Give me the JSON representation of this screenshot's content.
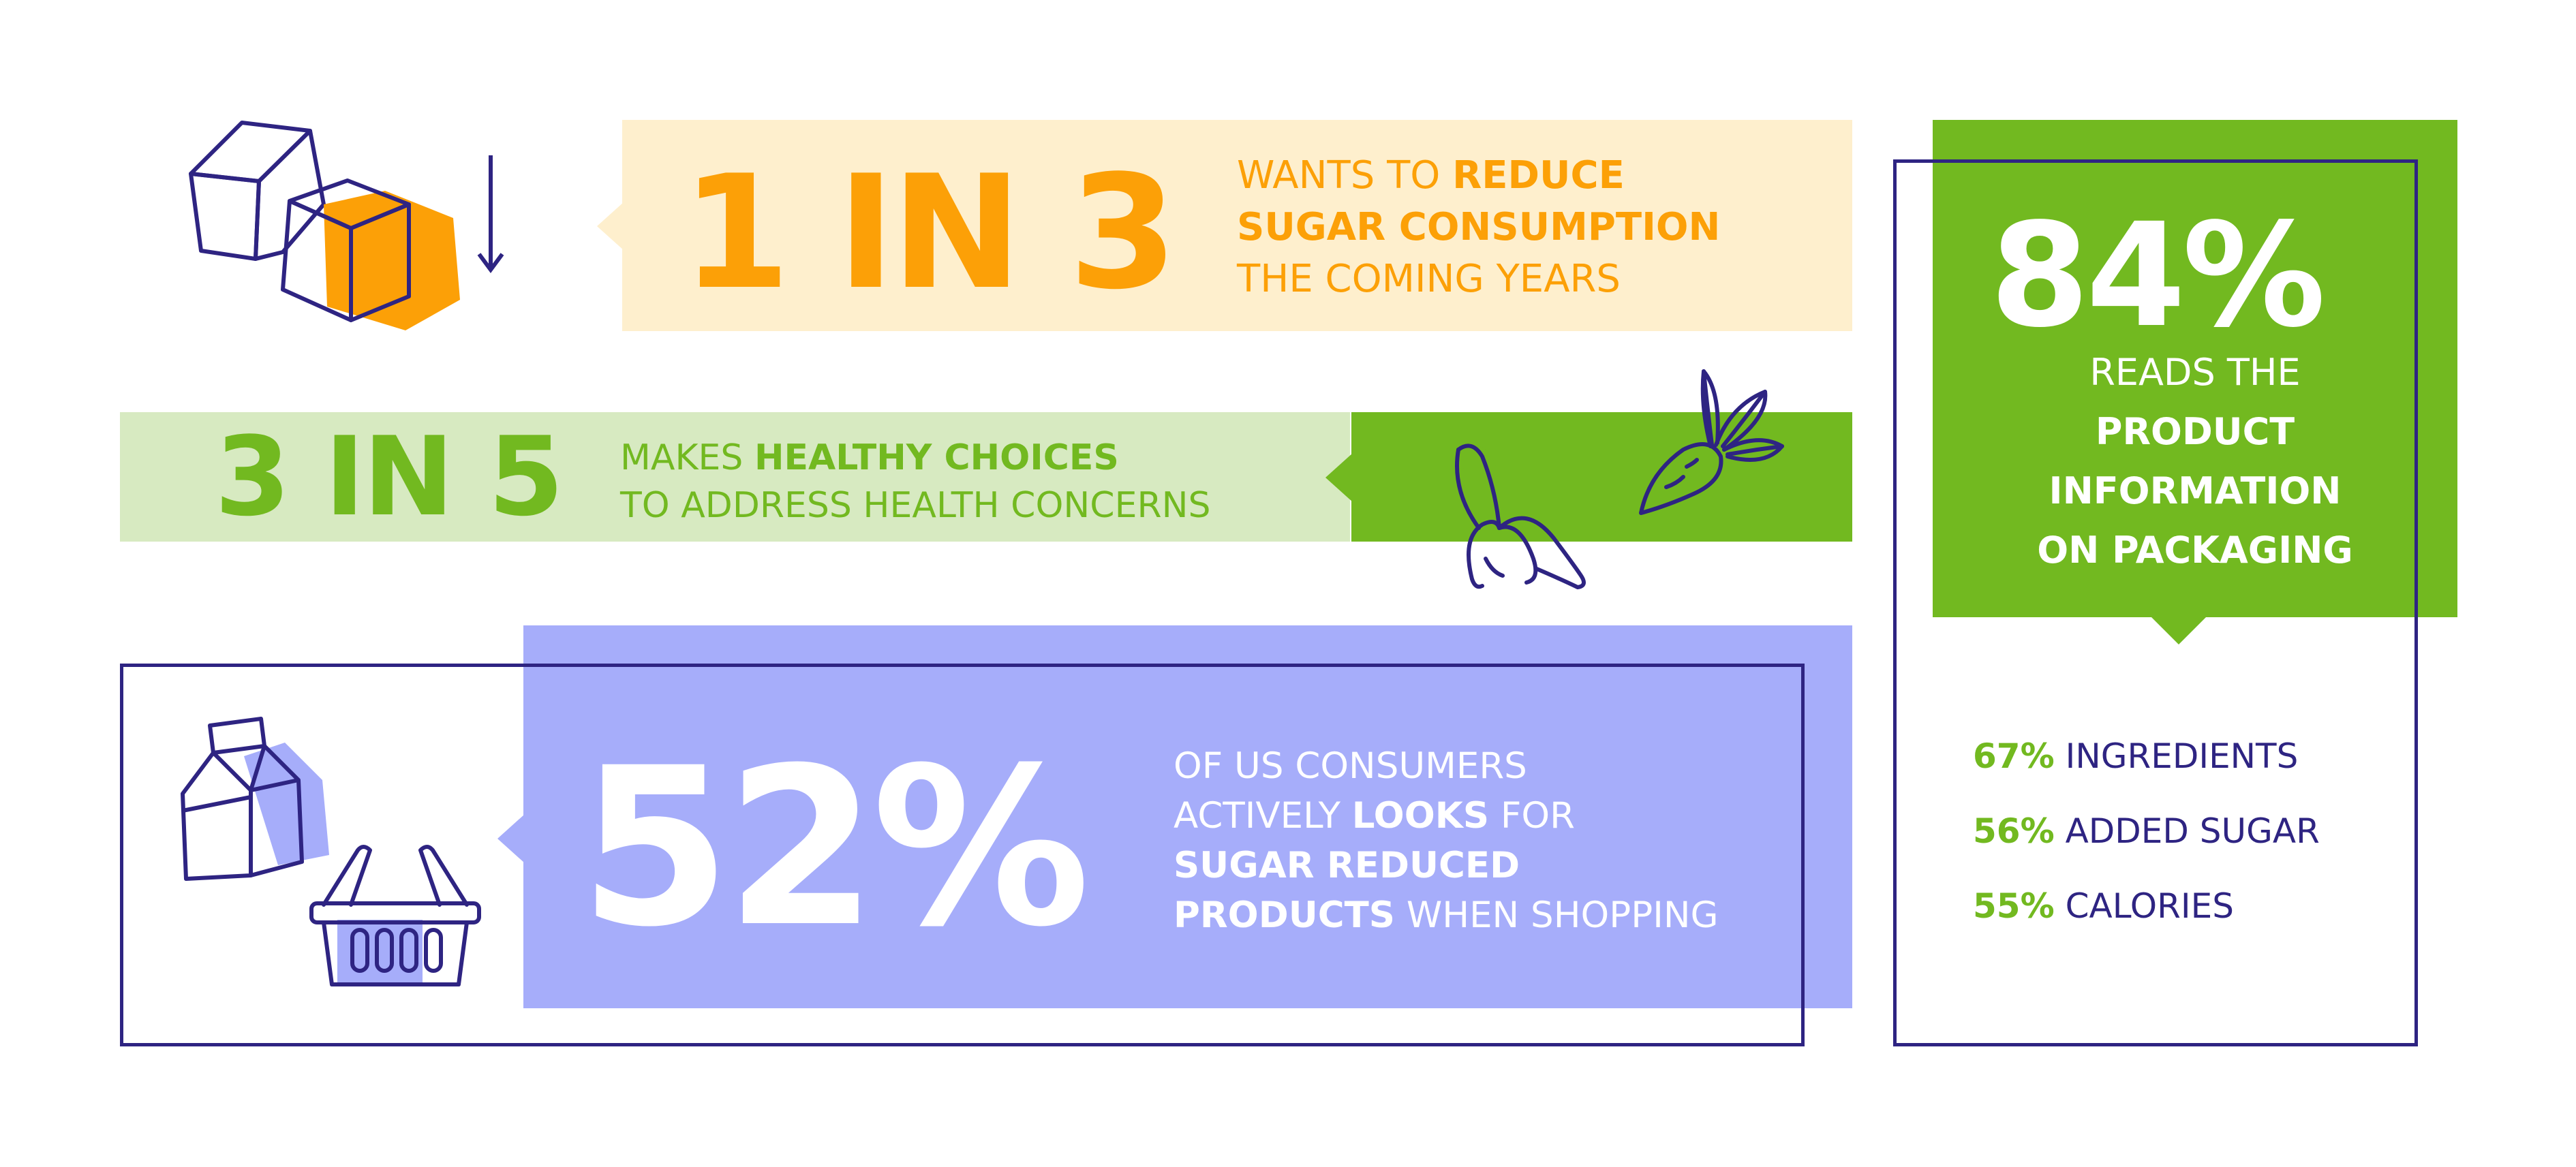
{
  "colors": {
    "orange": "#fca007",
    "orange_light": "#feefcd",
    "green": "#72b920",
    "green_light": "#d7eac1",
    "periwinkle": "#a6adfa",
    "navy": "#2e2482",
    "white": "#ffffff"
  },
  "icons": [
    "sugar-cubes-icon",
    "down-arrow-icon",
    "banana-icon",
    "radish-icon",
    "milk-carton-icon",
    "shopping-basket-icon"
  ],
  "stat_one": {
    "big": "1 IN 3",
    "line1_pre": "WANTS TO ",
    "line1_bold": "REDUCE",
    "line2_bold": "SUGAR CONSUMPTION",
    "line3": "THE COMING YEARS"
  },
  "stat_two": {
    "big": "3 IN 5",
    "line1_pre": "MAKES ",
    "line1_bold": "HEALTHY CHOICES",
    "line2": "TO ADDRESS HEALTH CONCERNS"
  },
  "stat_three": {
    "big": "52%",
    "line1": "OF US CONSUMERS",
    "line2_pre": "ACTIVELY ",
    "line2_bold": "LOOKS",
    "line2_post": " FOR",
    "line3_bold": "SUGAR REDUCED",
    "line4_bold": "PRODUCTS",
    "line4_post": " WHEN SHOPPING"
  },
  "stat_four": {
    "big": "84%",
    "line1": "READS THE",
    "line2_bold": "PRODUCT",
    "line3_bold": "INFORMATION",
    "line4_bold": "ON PACKAGING",
    "items": [
      {
        "pct": "67%",
        "label": "INGREDIENTS"
      },
      {
        "pct": "56%",
        "label": "ADDED SUGAR"
      },
      {
        "pct": "55%",
        "label": "CALORIES"
      }
    ]
  }
}
